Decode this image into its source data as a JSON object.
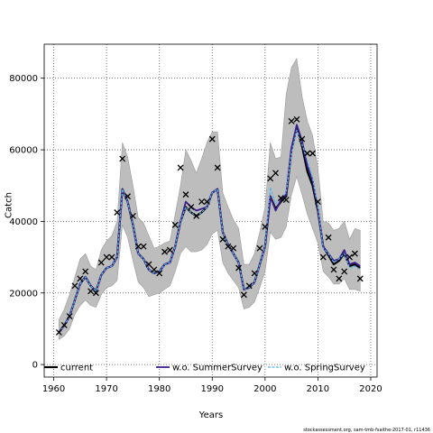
{
  "chart_data": {
    "type": "line",
    "title": "",
    "xlabel": "Years",
    "ylabel": "Catch",
    "xlim": [
      1958.2,
      2021.2
    ],
    "ylim": [
      -3500,
      89500
    ],
    "x_ticks": [
      1960,
      1970,
      1980,
      1990,
      2000,
      2010,
      2020
    ],
    "y_ticks": [
      0,
      20000,
      40000,
      60000,
      80000
    ],
    "x_tick_labels": [
      "1960",
      "1970",
      "1980",
      "1990",
      "2000",
      "2010",
      "2020"
    ],
    "y_tick_labels": [
      "0",
      "20000",
      "40000",
      "60000",
      "80000"
    ],
    "grid": true,
    "legend_position": "bottom",
    "years": [
      1961,
      1962,
      1963,
      1964,
      1965,
      1966,
      1967,
      1968,
      1969,
      1970,
      1971,
      1972,
      1973,
      1974,
      1975,
      1976,
      1977,
      1978,
      1979,
      1980,
      1981,
      1982,
      1983,
      1984,
      1985,
      1986,
      1987,
      1988,
      1989,
      1990,
      1991,
      1992,
      1993,
      1994,
      1995,
      1996,
      1997,
      1998,
      1999,
      2000,
      2001,
      2002,
      2003,
      2004,
      2005,
      2006,
      2007,
      2008,
      2009,
      2010,
      2011,
      2012,
      2013,
      2014,
      2015,
      2016,
      2017,
      2018
    ],
    "observed": [
      9000,
      11000,
      13500,
      22000,
      24000,
      26000,
      20500,
      20000,
      28500,
      30000,
      30000,
      42500,
      57500,
      47000,
      41500,
      33000,
      33000,
      28000,
      26500,
      25500,
      31500,
      32000,
      39000,
      55000,
      47500,
      44000,
      41500,
      45500,
      45500,
      63000,
      55000,
      35000,
      33000,
      32500,
      27000,
      19500,
      22000,
      25500,
      32500,
      38500,
      52000,
      53500,
      46500,
      46000,
      68000,
      68500,
      63000,
      59000,
      59000,
      45500,
      30000,
      35500,
      26500,
      24000,
      26000,
      30000,
      31000,
      24000
    ],
    "series": [
      {
        "name": "current",
        "color": "#000000",
        "values": [
          9000,
          11000,
          13500,
          18000,
          22500,
          24500,
          22000,
          20500,
          25000,
          27000,
          27500,
          30000,
          49000,
          45500,
          39000,
          31000,
          29500,
          26500,
          25500,
          26000,
          28000,
          28500,
          33000,
          40000,
          44000,
          42500,
          41500,
          42500,
          44000,
          48000,
          49000,
          37000,
          33500,
          31000,
          28500,
          21000,
          21500,
          23000,
          28000,
          33000,
          47000,
          43500,
          45500,
          47000,
          60000,
          66500,
          61000,
          54000,
          50000,
          43000,
          33000,
          30500,
          28000,
          29000,
          31000,
          27500,
          28000,
          27000
        ],
        "band_upper": [
          12500,
          15500,
          19500,
          24500,
          29500,
          31000,
          27500,
          26500,
          32000,
          34500,
          36000,
          40000,
          62000,
          58000,
          50000,
          41000,
          39500,
          36000,
          32500,
          33000,
          34000,
          34500,
          42000,
          50000,
          60000,
          57000,
          53500,
          57500,
          62000,
          65000,
          65000,
          48000,
          44000,
          40500,
          38000,
          28000,
          28000,
          31000,
          37000,
          44000,
          62000,
          57500,
          58000,
          75500,
          83000,
          85500,
          75000,
          68000,
          64000,
          55000,
          40000,
          39500,
          37500,
          38000,
          40000,
          35000,
          38000,
          37500
        ],
        "band_lower": [
          7000,
          8000,
          10000,
          14000,
          16500,
          18000,
          16500,
          16000,
          19500,
          21500,
          22000,
          23500,
          39000,
          35500,
          29000,
          23000,
          21500,
          19000,
          19500,
          20000,
          21000,
          22000,
          26000,
          31000,
          33000,
          31500,
          31500,
          32000,
          33500,
          36500,
          37500,
          28500,
          25500,
          23500,
          21500,
          15500,
          16000,
          17500,
          21500,
          26000,
          37000,
          35000,
          35500,
          38500,
          47500,
          52500,
          47500,
          42000,
          38000,
          34000,
          26000,
          24500,
          22500,
          22500,
          24000,
          21000,
          21000,
          20500
        ]
      },
      {
        "name": "w.o. SummerSurvey",
        "color": "#3b1f8c",
        "values": [
          9000,
          11000,
          13500,
          18000,
          22500,
          24500,
          22000,
          20500,
          25000,
          27000,
          27500,
          30000,
          49000,
          45500,
          39000,
          31000,
          29500,
          26500,
          25500,
          26000,
          28000,
          28500,
          33000,
          40000,
          45500,
          44000,
          43000,
          43500,
          44000,
          48000,
          49000,
          37000,
          33500,
          31000,
          28500,
          21000,
          21500,
          23000,
          28000,
          33000,
          47000,
          43000,
          46000,
          47500,
          60500,
          67000,
          62500,
          55500,
          51500,
          43500,
          33000,
          31000,
          29000,
          29500,
          32000,
          28000,
          28500,
          27500
        ]
      },
      {
        "name": "w.o. SpringSurvey",
        "color": "#56b4e9",
        "values": [
          9000,
          11000,
          13500,
          18000,
          22500,
          24500,
          22000,
          20500,
          25000,
          27000,
          27500,
          30000,
          49000,
          45500,
          39000,
          31000,
          29500,
          26500,
          25500,
          26000,
          28000,
          28500,
          33000,
          40000,
          44000,
          42500,
          41500,
          42500,
          44000,
          48000,
          49000,
          37000,
          33500,
          31000,
          28500,
          21000,
          21500,
          23000,
          28000,
          33000,
          49500,
          45000,
          46500,
          48000,
          59000,
          65500,
          61500,
          57000,
          52000,
          44000,
          32500,
          31000,
          28500,
          29500,
          31000,
          27000,
          27500,
          26500
        ]
      }
    ]
  },
  "footer": {
    "credit": "stockassessment.org, sam-tmb-fsaithe-2017-01, r11436"
  }
}
